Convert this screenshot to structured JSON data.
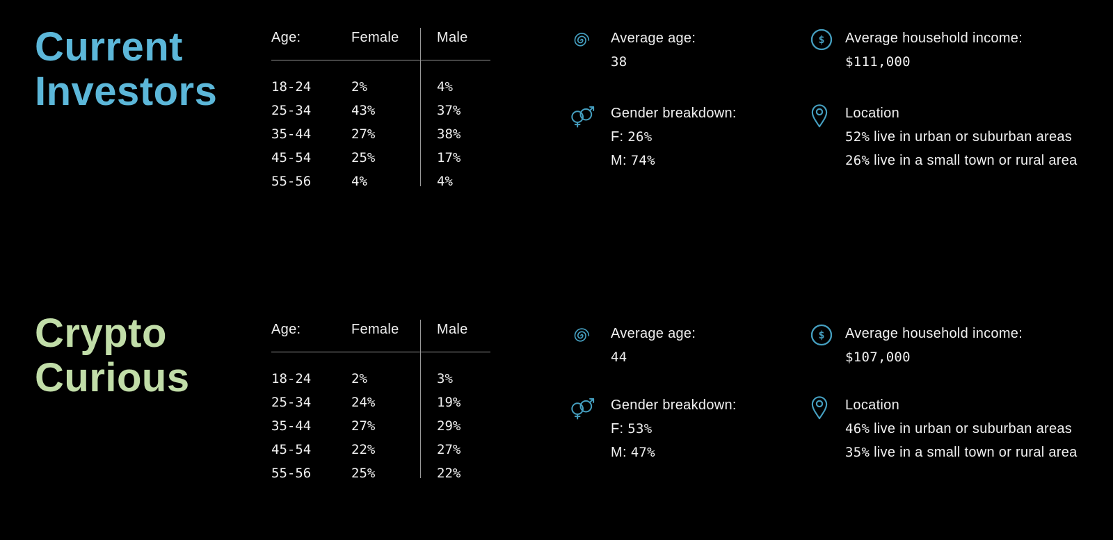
{
  "theme": {
    "background": "#000000",
    "text": "#f0f0f0",
    "accent": "#459fc0",
    "title-blue": "#5cb7d9",
    "title-green": "#c1dda8",
    "rule": "#999999"
  },
  "sections": [
    {
      "title_lines": [
        "Current",
        "Investors"
      ],
      "age_table": {
        "headers": [
          "Age:",
          "Female",
          "Male"
        ],
        "rows": [
          {
            "age": "18-24",
            "female": "2%",
            "male": "4%"
          },
          {
            "age": "25-34",
            "female": "43%",
            "male": "37%"
          },
          {
            "age": "35-44",
            "female": "27%",
            "male": "38%"
          },
          {
            "age": "45-54",
            "female": "25%",
            "male": "17%"
          },
          {
            "age": "55-56",
            "female": "4%",
            "male": "4%"
          }
        ]
      },
      "stats": {
        "average_age": {
          "icon": "spiral-icon",
          "label": "Average age:",
          "value": "38"
        },
        "gender": {
          "icon": "gender-icon",
          "label": "Gender breakdown:",
          "lines": [
            "F: 26%",
            "M: 74%"
          ]
        },
        "income": {
          "icon": "dollar-circle-icon",
          "glyph": "$",
          "label": "Average household income:",
          "value": "$111,000"
        },
        "location": {
          "icon": "location-pin-icon",
          "label": "Location",
          "lines": [
            "52% live in urban or suburban areas",
            "26% live in a small town or rural area"
          ]
        }
      }
    },
    {
      "title_lines": [
        "Crypto",
        "Curious"
      ],
      "age_table": {
        "headers": [
          "Age:",
          "Female",
          "Male"
        ],
        "rows": [
          {
            "age": "18-24",
            "female": "2%",
            "male": "3%"
          },
          {
            "age": "25-34",
            "female": "24%",
            "male": "19%"
          },
          {
            "age": "35-44",
            "female": "27%",
            "male": "29%"
          },
          {
            "age": "45-54",
            "female": "22%",
            "male": "27%"
          },
          {
            "age": "55-56",
            "female": "25%",
            "male": "22%"
          }
        ]
      },
      "stats": {
        "average_age": {
          "icon": "spiral-icon",
          "label": "Average age:",
          "value": "44"
        },
        "gender": {
          "icon": "gender-icon",
          "label": "Gender breakdown:",
          "lines": [
            "F: 53%",
            "M: 47%"
          ]
        },
        "income": {
          "icon": "dollar-circle-icon",
          "glyph": "$",
          "label": "Average household income:",
          "value": "$107,000"
        },
        "location": {
          "icon": "location-pin-icon",
          "label": "Location",
          "lines": [
            "46% live in urban or suburban areas",
            "35% live in a small town or rural area"
          ]
        }
      }
    }
  ]
}
